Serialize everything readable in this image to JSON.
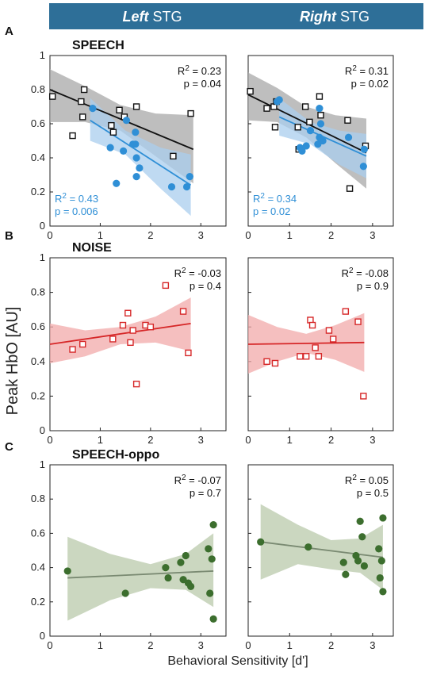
{
  "header": {
    "left": {
      "italic": "Left",
      "plain": " STG"
    },
    "right": {
      "italic": "Right",
      "plain": " STG"
    },
    "color": "#2e6f98"
  },
  "ylabel": "Peak HbO [AU]",
  "xlabel": "Behavioral Sensitivity [d']",
  "colors": {
    "speech_black": "#111111",
    "speech_blue": "#2f8fd6",
    "speech_gray_band": "#a8a8a8",
    "speech_blue_band": "#a9cdee",
    "noise_red": "#d62728",
    "noise_band": "#f2aaaa",
    "oppo_green": "#3c6e2e",
    "oppo_band": "#b9c9ab",
    "oppo_line": "#7a8a72"
  },
  "chart_data": [
    {
      "type": "scatter",
      "row": 0,
      "col": 0,
      "panel_letter": "A",
      "condition": "SPEECH",
      "xlim": [
        0,
        3.5
      ],
      "ylim": [
        0,
        1
      ],
      "xticks": [
        0,
        1,
        2,
        3
      ],
      "yticks": [
        0,
        0.2,
        0.4,
        0.6,
        0.8,
        1
      ],
      "series": [
        {
          "marker": "square-open",
          "color": "#111111",
          "band": "#a8a8a8",
          "points": [
            [
              0.05,
              0.76
            ],
            [
              0.45,
              0.53
            ],
            [
              0.62,
              0.73
            ],
            [
              0.68,
              0.8
            ],
            [
              0.65,
              0.64
            ],
            [
              1.22,
              0.59
            ],
            [
              1.26,
              0.55
            ],
            [
              1.38,
              0.68
            ],
            [
              1.48,
              0.64
            ],
            [
              1.72,
              0.7
            ],
            [
              2.45,
              0.41
            ],
            [
              2.8,
              0.66
            ]
          ],
          "fit": [
            [
              0.0,
              0.8
            ],
            [
              2.85,
              0.45
            ]
          ],
          "ci_upper": [
            [
              0.0,
              0.92
            ],
            [
              0.7,
              0.82
            ],
            [
              1.4,
              0.71
            ],
            [
              2.1,
              0.66
            ],
            [
              2.85,
              0.65
            ]
          ],
          "ci_lower": [
            [
              0.0,
              0.61
            ],
            [
              0.7,
              0.61
            ],
            [
              1.4,
              0.56
            ],
            [
              2.1,
              0.41
            ],
            [
              2.85,
              0.25
            ]
          ],
          "stats": {
            "r2": "R = 0.23",
            "p": "p = 0.04"
          }
        },
        {
          "marker": "circle-filled",
          "color": "#2f8fd6",
          "band": "#a9cdee",
          "points": [
            [
              0.85,
              0.69
            ],
            [
              1.2,
              0.46
            ],
            [
              1.32,
              0.25
            ],
            [
              1.46,
              0.44
            ],
            [
              1.52,
              0.62
            ],
            [
              1.65,
              0.48
            ],
            [
              1.7,
              0.55
            ],
            [
              1.7,
              0.48
            ],
            [
              1.72,
              0.4
            ],
            [
              1.78,
              0.34
            ],
            [
              1.72,
              0.29
            ],
            [
              2.42,
              0.23
            ],
            [
              2.72,
              0.23
            ],
            [
              2.78,
              0.29
            ]
          ],
          "fit": [
            [
              0.8,
              0.62
            ],
            [
              2.8,
              0.24
            ]
          ],
          "ci_upper": [
            [
              0.8,
              0.75
            ],
            [
              1.5,
              0.56
            ],
            [
              2.2,
              0.46
            ],
            [
              2.8,
              0.42
            ]
          ],
          "ci_lower": [
            [
              0.8,
              0.5
            ],
            [
              1.5,
              0.42
            ],
            [
              2.2,
              0.22
            ],
            [
              2.8,
              0.06
            ]
          ],
          "stats": {
            "r2": "R = 0.43",
            "p": "p = 0.006"
          }
        }
      ]
    },
    {
      "type": "scatter",
      "row": 0,
      "col": 1,
      "condition": "",
      "xlim": [
        0,
        3.5
      ],
      "ylim": [
        0,
        1
      ],
      "xticks": [
        0,
        1,
        2,
        3
      ],
      "yticks": [
        0,
        0.2,
        0.4,
        0.6,
        0.8,
        1
      ],
      "series": [
        {
          "marker": "square-open",
          "color": "#111111",
          "band": "#a8a8a8",
          "points": [
            [
              0.05,
              0.79
            ],
            [
              0.45,
              0.69
            ],
            [
              0.62,
              0.7
            ],
            [
              0.65,
              0.58
            ],
            [
              0.68,
              0.73
            ],
            [
              1.2,
              0.58
            ],
            [
              1.22,
              0.45
            ],
            [
              1.38,
              0.7
            ],
            [
              1.48,
              0.61
            ],
            [
              1.72,
              0.76
            ],
            [
              1.75,
              0.65
            ],
            [
              2.4,
              0.62
            ],
            [
              2.45,
              0.22
            ],
            [
              2.83,
              0.47
            ]
          ],
          "fit": [
            [
              0.0,
              0.77
            ],
            [
              2.85,
              0.43
            ]
          ],
          "ci_upper": [
            [
              0.0,
              0.9
            ],
            [
              0.7,
              0.81
            ],
            [
              1.4,
              0.7
            ],
            [
              2.1,
              0.65
            ],
            [
              2.85,
              0.63
            ]
          ],
          "ci_lower": [
            [
              0.0,
              0.62
            ],
            [
              0.7,
              0.61
            ],
            [
              1.4,
              0.52
            ],
            [
              2.1,
              0.37
            ],
            [
              2.85,
              0.22
            ]
          ],
          "stats": {
            "r2": "R = 0.31",
            "p": "p = 0.02"
          }
        },
        {
          "marker": "circle-filled",
          "color": "#2f8fd6",
          "band": "#a9cdee",
          "points": [
            [
              0.7,
              0.73
            ],
            [
              0.75,
              0.74
            ],
            [
              1.25,
              0.46
            ],
            [
              1.3,
              0.44
            ],
            [
              1.4,
              0.47
            ],
            [
              1.5,
              0.56
            ],
            [
              1.68,
              0.48
            ],
            [
              1.72,
              0.52
            ],
            [
              1.75,
              0.6
            ],
            [
              1.72,
              0.69
            ],
            [
              1.8,
              0.5
            ],
            [
              2.42,
              0.52
            ],
            [
              2.78,
              0.35
            ],
            [
              2.8,
              0.45
            ]
          ],
          "fit": [
            [
              0.75,
              0.64
            ],
            [
              2.85,
              0.41
            ]
          ],
          "ci_upper": [
            [
              0.75,
              0.75
            ],
            [
              1.5,
              0.61
            ],
            [
              2.2,
              0.56
            ],
            [
              2.85,
              0.54
            ]
          ],
          "ci_lower": [
            [
              0.75,
              0.53
            ],
            [
              1.5,
              0.48
            ],
            [
              2.2,
              0.36
            ],
            [
              2.85,
              0.28
            ]
          ],
          "stats": {
            "r2": "R = 0.34",
            "p": "p = 0.02"
          }
        }
      ]
    },
    {
      "type": "scatter",
      "row": 1,
      "col": 0,
      "panel_letter": "B",
      "condition": "NOISE",
      "xlim": [
        0,
        3.5
      ],
      "ylim": [
        0,
        1
      ],
      "xticks": [
        0,
        1,
        2,
        3
      ],
      "yticks": [
        0,
        0.2,
        0.4,
        0.6,
        0.8,
        1
      ],
      "series": [
        {
          "marker": "square-open",
          "color": "#d62728",
          "band": "#f2aaaa",
          "points": [
            [
              0.45,
              0.47
            ],
            [
              0.65,
              0.5
            ],
            [
              1.25,
              0.53
            ],
            [
              1.45,
              0.61
            ],
            [
              1.55,
              0.68
            ],
            [
              1.6,
              0.51
            ],
            [
              1.65,
              0.58
            ],
            [
              1.72,
              0.27
            ],
            [
              1.9,
              0.61
            ],
            [
              2.0,
              0.6
            ],
            [
              2.3,
              0.84
            ],
            [
              2.65,
              0.69
            ],
            [
              2.75,
              0.45
            ]
          ],
          "fit": [
            [
              0.0,
              0.5
            ],
            [
              2.8,
              0.62
            ]
          ],
          "ci_upper": [
            [
              0.0,
              0.62
            ],
            [
              0.7,
              0.58
            ],
            [
              1.4,
              0.6
            ],
            [
              2.1,
              0.66
            ],
            [
              2.8,
              0.77
            ]
          ],
          "ci_lower": [
            [
              0.0,
              0.39
            ],
            [
              0.7,
              0.43
            ],
            [
              1.4,
              0.5
            ],
            [
              2.1,
              0.51
            ],
            [
              2.8,
              0.46
            ]
          ],
          "stats": {
            "r2": "R = -0.03",
            "p": "p = 0.4"
          }
        }
      ]
    },
    {
      "type": "scatter",
      "row": 1,
      "col": 1,
      "condition": "",
      "xlim": [
        0,
        3.5
      ],
      "ylim": [
        0,
        1
      ],
      "xticks": [
        0,
        1,
        2,
        3
      ],
      "yticks": [
        0,
        0.2,
        0.4,
        0.6,
        0.8,
        1
      ],
      "series": [
        {
          "marker": "square-open",
          "color": "#d62728",
          "band": "#f2aaaa",
          "points": [
            [
              0.45,
              0.4
            ],
            [
              0.65,
              0.39
            ],
            [
              1.25,
              0.43
            ],
            [
              1.4,
              0.43
            ],
            [
              1.5,
              0.64
            ],
            [
              1.55,
              0.61
            ],
            [
              1.62,
              0.48
            ],
            [
              1.7,
              0.43
            ],
            [
              1.95,
              0.58
            ],
            [
              2.05,
              0.53
            ],
            [
              2.35,
              0.69
            ],
            [
              2.65,
              0.63
            ],
            [
              2.78,
              0.2
            ]
          ],
          "fit": [
            [
              0.0,
              0.5
            ],
            [
              2.8,
              0.51
            ]
          ],
          "ci_upper": [
            [
              0.0,
              0.67
            ],
            [
              0.7,
              0.6
            ],
            [
              1.4,
              0.56
            ],
            [
              2.1,
              0.61
            ],
            [
              2.8,
              0.68
            ]
          ],
          "ci_lower": [
            [
              0.0,
              0.33
            ],
            [
              0.7,
              0.4
            ],
            [
              1.4,
              0.45
            ],
            [
              2.1,
              0.41
            ],
            [
              2.8,
              0.34
            ]
          ],
          "stats": {
            "r2": "R = -0.08",
            "p": "p = 0.9"
          }
        }
      ]
    },
    {
      "type": "scatter",
      "row": 2,
      "col": 0,
      "panel_letter": "C",
      "condition": "SPEECH-oppo",
      "xlim": [
        0,
        3.5
      ],
      "ylim": [
        0,
        1
      ],
      "xticks": [
        0,
        1,
        2,
        3
      ],
      "yticks": [
        0,
        0.2,
        0.4,
        0.6,
        0.8,
        1
      ],
      "series": [
        {
          "marker": "circle-filled",
          "color": "#3c6e2e",
          "band": "#b9c9ab",
          "line_color": "#7a8a72",
          "points": [
            [
              0.35,
              0.38
            ],
            [
              1.5,
              0.25
            ],
            [
              2.3,
              0.4
            ],
            [
              2.35,
              0.34
            ],
            [
              2.6,
              0.43
            ],
            [
              2.65,
              0.33
            ],
            [
              2.7,
              0.47
            ],
            [
              2.75,
              0.31
            ],
            [
              2.8,
              0.29
            ],
            [
              3.15,
              0.51
            ],
            [
              3.18,
              0.25
            ],
            [
              3.22,
              0.45
            ],
            [
              3.25,
              0.65
            ],
            [
              3.25,
              0.1
            ]
          ],
          "fit": [
            [
              0.35,
              0.34
            ],
            [
              3.25,
              0.38
            ]
          ],
          "ci_upper": [
            [
              0.35,
              0.58
            ],
            [
              1.2,
              0.48
            ],
            [
              2.0,
              0.42
            ],
            [
              2.7,
              0.48
            ],
            [
              3.25,
              0.6
            ]
          ],
          "ci_lower": [
            [
              0.35,
              0.09
            ],
            [
              1.2,
              0.21
            ],
            [
              2.0,
              0.28
            ],
            [
              2.7,
              0.27
            ],
            [
              3.25,
              0.17
            ]
          ],
          "stats": {
            "r2": "R = -0.07",
            "p": "p = 0.7"
          }
        }
      ]
    },
    {
      "type": "scatter",
      "row": 2,
      "col": 1,
      "condition": "",
      "xlim": [
        0,
        3.5
      ],
      "ylim": [
        0,
        1
      ],
      "xticks": [
        0,
        1,
        2,
        3
      ],
      "yticks": [
        0,
        0.2,
        0.4,
        0.6,
        0.8,
        1
      ],
      "series": [
        {
          "marker": "circle-filled",
          "color": "#3c6e2e",
          "band": "#b9c9ab",
          "line_color": "#7a8a72",
          "points": [
            [
              0.3,
              0.55
            ],
            [
              1.45,
              0.52
            ],
            [
              2.3,
              0.43
            ],
            [
              2.35,
              0.36
            ],
            [
              2.6,
              0.47
            ],
            [
              2.65,
              0.44
            ],
            [
              2.7,
              0.67
            ],
            [
              2.75,
              0.58
            ],
            [
              2.8,
              0.41
            ],
            [
              3.15,
              0.51
            ],
            [
              3.18,
              0.34
            ],
            [
              3.22,
              0.44
            ],
            [
              3.25,
              0.69
            ],
            [
              3.25,
              0.26
            ]
          ],
          "fit": [
            [
              0.3,
              0.55
            ],
            [
              3.25,
              0.46
            ]
          ],
          "ci_upper": [
            [
              0.3,
              0.77
            ],
            [
              1.2,
              0.65
            ],
            [
              2.0,
              0.56
            ],
            [
              2.7,
              0.57
            ],
            [
              3.25,
              0.65
            ]
          ],
          "ci_lower": [
            [
              0.3,
              0.33
            ],
            [
              1.2,
              0.42
            ],
            [
              2.0,
              0.39
            ],
            [
              2.7,
              0.37
            ],
            [
              3.25,
              0.27
            ]
          ],
          "stats": {
            "r2": "R = 0.05",
            "p": "p = 0.5"
          }
        }
      ]
    }
  ]
}
